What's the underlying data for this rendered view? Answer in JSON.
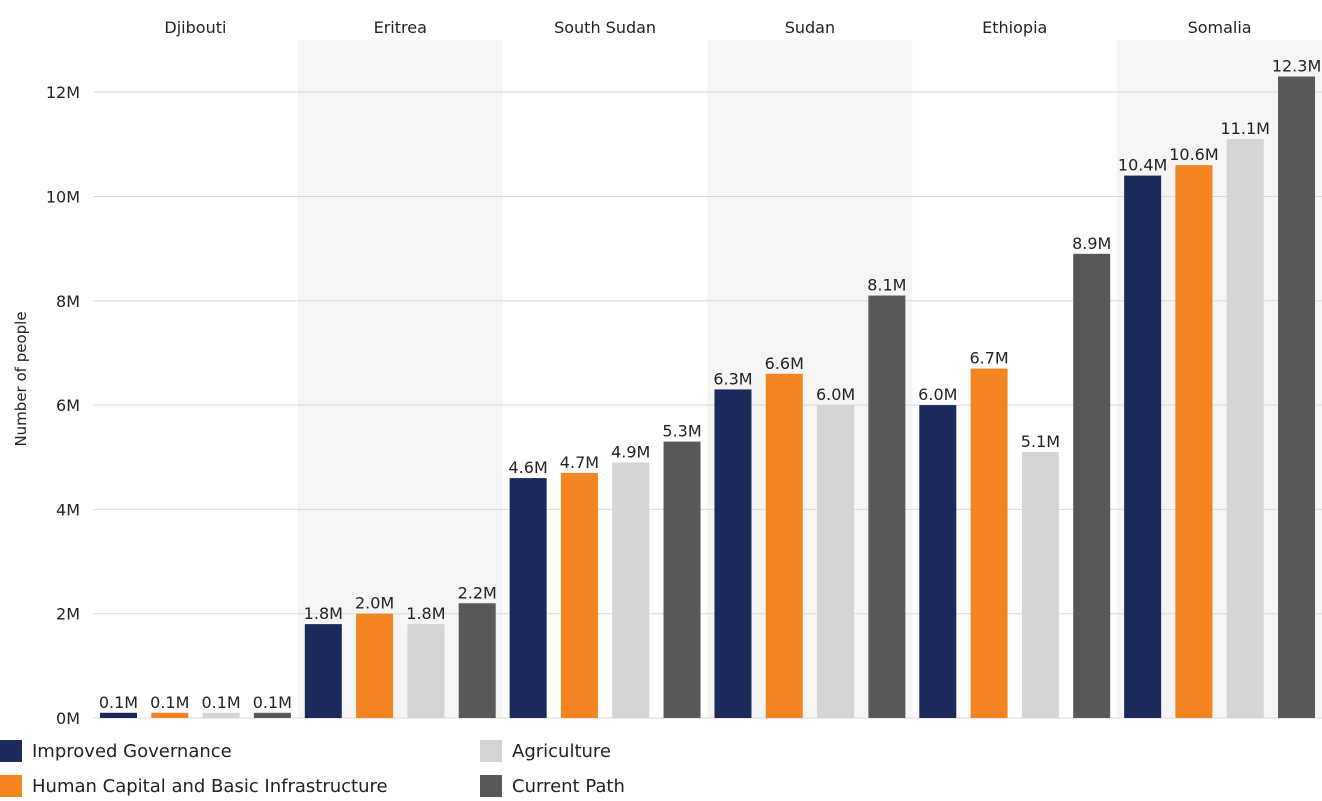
{
  "chart_data": {
    "type": "bar",
    "ylabel": "Number of people",
    "yticks": [
      "0M",
      "2M",
      "4M",
      "6M",
      "8M",
      "10M",
      "12M"
    ],
    "ylim": [
      0,
      13
    ],
    "grid": true,
    "legend_position": "bottom-left",
    "categories": [
      "Djibouti",
      "Eritrea",
      "South Sudan",
      "Sudan",
      "Ethiopia",
      "Somalia"
    ],
    "series": [
      {
        "name": "Improved Governance",
        "color": "#1b2a5a",
        "values": [
          0.1,
          1.8,
          4.6,
          6.3,
          6.0,
          10.4
        ],
        "labels": [
          "0.1M",
          "1.8M",
          "4.6M",
          "6.3M",
          "6.0M",
          "10.4M"
        ]
      },
      {
        "name": "Human Capital and Basic Infrastructure",
        "color": "#f28421",
        "values": [
          0.1,
          2.0,
          4.7,
          6.6,
          6.7,
          10.6
        ],
        "labels": [
          "0.1M",
          "2.0M",
          "4.7M",
          "6.6M",
          "6.7M",
          "10.6M"
        ]
      },
      {
        "name": "Agriculture",
        "color": "#d3d4d6",
        "values": [
          0.1,
          1.8,
          4.9,
          6.0,
          5.1,
          11.1
        ],
        "labels": [
          "0.1M",
          "1.8M",
          "4.9M",
          "6.0M",
          "5.1M",
          "11.1M"
        ]
      },
      {
        "name": "Current Path",
        "color": "#58585a",
        "values": [
          0.1,
          2.2,
          5.3,
          8.1,
          8.9,
          12.3
        ],
        "labels": [
          "0.1M",
          "2.2M",
          "5.3M",
          "8.1M",
          "8.9M",
          "12.3M"
        ]
      }
    ],
    "colors": {
      "band": "#f5f5f5",
      "grid": "#d9d9d9",
      "text": "#222222"
    }
  }
}
